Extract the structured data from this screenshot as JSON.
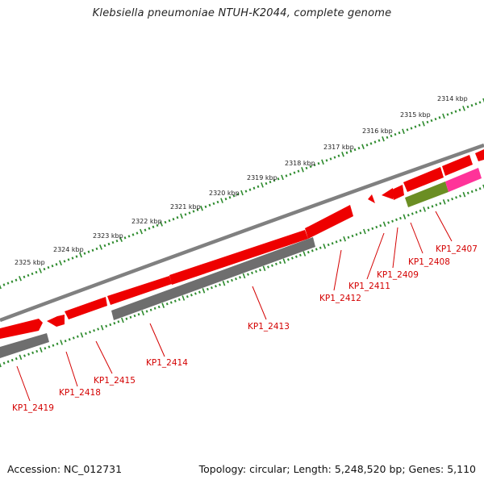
{
  "title": "Klebsiella pneumoniae NTUH-K2044, complete genome",
  "footer": {
    "accession": "Accession: NC_012731",
    "summary": "Topology: circular; Length: 5,248,520 bp; Genes: 5,110"
  },
  "colors": {
    "cds": "#ee0000",
    "cds_grey": "#6e6e6e",
    "cds_olive": "#6b8e23",
    "cds_pink": "#ff3399",
    "backbone": "#808080",
    "ticks": "#2e8b2e",
    "gene_label": "#d40000"
  },
  "scale": {
    "tick_labels": [
      "2314 kbp",
      "2315 kbp",
      "2316 kbp",
      "2317 kbp",
      "2318 kbp",
      "2319 kbp",
      "2320 kbp",
      "2321 kbp",
      "2322 kbp",
      "2323 kbp",
      "2324 kbp",
      "2325 kbp"
    ]
  },
  "genes": [
    {
      "label": "KP1_2407"
    },
    {
      "label": "KP1_2408"
    },
    {
      "label": "KP1_2409"
    },
    {
      "label": "KP1_2411"
    },
    {
      "label": "KP1_2412"
    },
    {
      "label": "KP1_2413"
    },
    {
      "label": "KP1_2414"
    },
    {
      "label": "KP1_2415"
    },
    {
      "label": "KP1_2418"
    },
    {
      "label": "KP1_2419"
    }
  ]
}
